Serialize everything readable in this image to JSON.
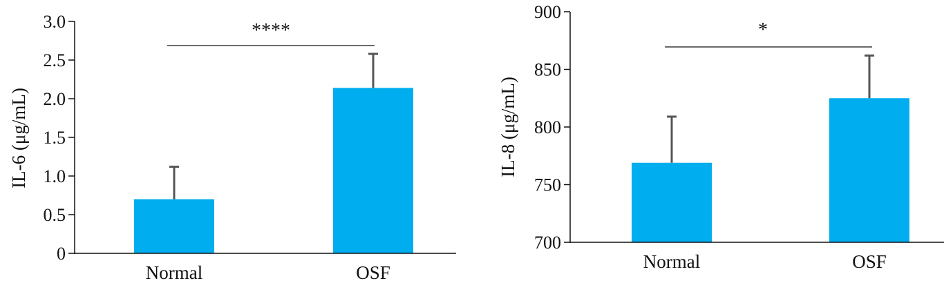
{
  "chart_data": [
    {
      "type": "bar",
      "categories": [
        "Normal",
        "OSF"
      ],
      "values": [
        0.7,
        2.14
      ],
      "errors": [
        0.42,
        0.44
      ],
      "ylabel": "IL-6 (μg/mL)",
      "ylim": [
        0,
        3.0
      ],
      "yticks": [
        "0",
        "0.5",
        "1.0",
        "1.5",
        "2.0",
        "2.5",
        "3.0"
      ],
      "significance": "****",
      "bar_color": "#00AEEF",
      "grid": false
    },
    {
      "type": "bar",
      "categories": [
        "Normal",
        "OSF"
      ],
      "values": [
        769,
        825
      ],
      "errors": [
        40,
        37
      ],
      "ylabel": "IL-8 (μg/mL)",
      "ylim": [
        700,
        900
      ],
      "yticks": [
        "700",
        "750",
        "800",
        "850",
        "900"
      ],
      "significance": "*",
      "bar_color": "#00AEEF",
      "grid": false
    }
  ]
}
